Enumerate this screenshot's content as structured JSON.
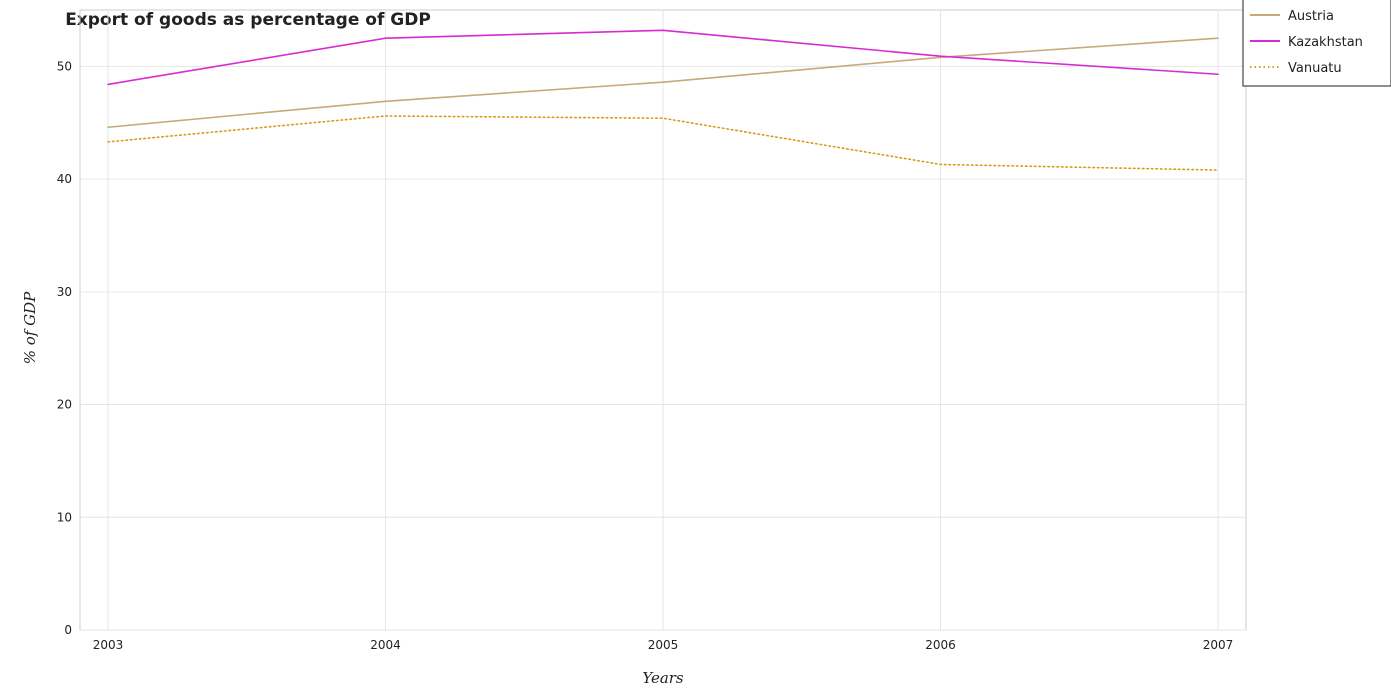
{
  "chart_data": {
    "type": "line",
    "title": "Export of goods as percentage of GDP",
    "xlabel": "Years",
    "ylabel": "% of GDP",
    "x": [
      "2003",
      "2004",
      "2005",
      "2006",
      "2007"
    ],
    "ylim": [
      0,
      55
    ],
    "yticks": [
      "0",
      "10",
      "20",
      "30",
      "40",
      "50"
    ],
    "grid": true,
    "legend_position": "top-right",
    "series": [
      {
        "name": "Austria",
        "color": "#c8a97a",
        "dash": "solid",
        "values": [
          44.6,
          46.9,
          48.6,
          50.8,
          52.5
        ]
      },
      {
        "name": "Kazakhstan",
        "color": "#d62bd3",
        "dash": "solid",
        "values": [
          48.4,
          52.5,
          53.2,
          50.9,
          49.3
        ]
      },
      {
        "name": "Vanuatu",
        "color": "#d99a1a",
        "dash": "dotted",
        "values": [
          43.3,
          45.6,
          45.4,
          41.3,
          40.8
        ]
      }
    ]
  }
}
